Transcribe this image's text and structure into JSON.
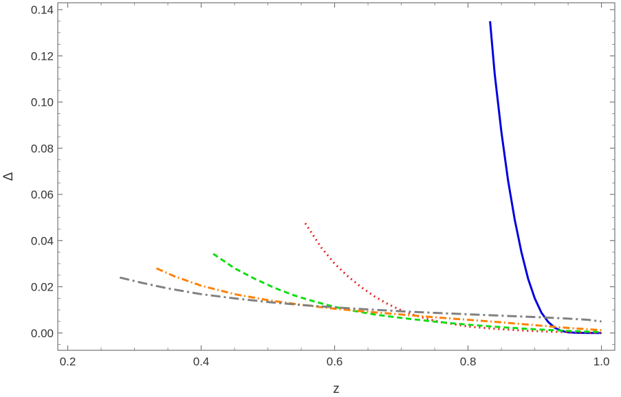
{
  "chart_data": {
    "type": "line",
    "title": "",
    "xlabel": "z",
    "ylabel": "Δ",
    "xlim": [
      0.185,
      1.02
    ],
    "ylim": [
      -0.0075,
      0.143
    ],
    "x_ticks": [
      0.2,
      0.4,
      0.6,
      0.8,
      1.0
    ],
    "x_tick_labels": [
      "0.2",
      "0.4",
      "0.6",
      "0.8",
      "1.0"
    ],
    "y_ticks": [
      0.0,
      0.02,
      0.04,
      0.06,
      0.08,
      0.1,
      0.12,
      0.14
    ],
    "y_tick_labels": [
      "0.00",
      "0.02",
      "0.04",
      "0.06",
      "0.08",
      "0.10",
      "0.12",
      "0.14"
    ],
    "grid": false,
    "legend": "none",
    "series": [
      {
        "color": "#0000e0",
        "dash": "solid",
        "points": [
          [
            0.833,
            0.135
          ],
          [
            0.84,
            0.112
          ],
          [
            0.85,
            0.087
          ],
          [
            0.86,
            0.066
          ],
          [
            0.87,
            0.049
          ],
          [
            0.88,
            0.035
          ],
          [
            0.89,
            0.0235
          ],
          [
            0.9,
            0.015
          ],
          [
            0.91,
            0.0088
          ],
          [
            0.92,
            0.0048
          ],
          [
            0.93,
            0.0023
          ],
          [
            0.94,
            0.0009
          ],
          [
            0.95,
            0.0003
          ],
          [
            0.96,
            0.0001
          ],
          [
            0.97,
            5e-05
          ],
          [
            0.98,
            0.0
          ],
          [
            0.99,
            0.0
          ],
          [
            1.0,
            0.0
          ]
        ]
      },
      {
        "color": "#e02020",
        "dash": "dotted",
        "points": [
          [
            0.556,
            0.0475
          ],
          [
            0.58,
            0.037
          ],
          [
            0.6,
            0.03
          ],
          [
            0.62,
            0.0245
          ],
          [
            0.64,
            0.0198
          ],
          [
            0.66,
            0.0158
          ],
          [
            0.68,
            0.0125
          ],
          [
            0.7,
            0.0098
          ],
          [
            0.72,
            0.0077
          ],
          [
            0.74,
            0.006
          ],
          [
            0.76,
            0.0047
          ],
          [
            0.78,
            0.0037
          ],
          [
            0.8,
            0.0028
          ],
          [
            0.84,
            0.0018
          ],
          [
            0.88,
            0.0011
          ],
          [
            0.92,
            0.0006
          ],
          [
            0.96,
            0.0003
          ],
          [
            1.0,
            0.0
          ]
        ]
      },
      {
        "color": "#11dd11",
        "dash": "dashed",
        "points": [
          [
            0.418,
            0.0343
          ],
          [
            0.45,
            0.028
          ],
          [
            0.48,
            0.0235
          ],
          [
            0.51,
            0.0195
          ],
          [
            0.54,
            0.0162
          ],
          [
            0.57,
            0.0136
          ],
          [
            0.6,
            0.0113
          ],
          [
            0.63,
            0.0095
          ],
          [
            0.66,
            0.008
          ],
          [
            0.7,
            0.0065
          ],
          [
            0.75,
            0.0049
          ],
          [
            0.8,
            0.0036
          ],
          [
            0.85,
            0.0025
          ],
          [
            0.9,
            0.0016
          ],
          [
            0.95,
            0.0009
          ],
          [
            1.0,
            0.0004
          ]
        ]
      },
      {
        "color": "#ff8000",
        "dash": "dashdot",
        "points": [
          [
            0.333,
            0.028
          ],
          [
            0.36,
            0.0245
          ],
          [
            0.4,
            0.0205
          ],
          [
            0.45,
            0.0168
          ],
          [
            0.5,
            0.0142
          ],
          [
            0.55,
            0.0122
          ],
          [
            0.6,
            0.0105
          ],
          [
            0.65,
            0.0092
          ],
          [
            0.7,
            0.008
          ],
          [
            0.75,
            0.0068
          ],
          [
            0.8,
            0.0057
          ],
          [
            0.85,
            0.0046
          ],
          [
            0.9,
            0.0034
          ],
          [
            0.95,
            0.0022
          ],
          [
            1.0,
            0.0012
          ]
        ]
      },
      {
        "color": "#808080",
        "dash": "longdashdot",
        "points": [
          [
            0.278,
            0.024
          ],
          [
            0.31,
            0.0218
          ],
          [
            0.35,
            0.0193
          ],
          [
            0.4,
            0.0168
          ],
          [
            0.45,
            0.015
          ],
          [
            0.5,
            0.0134
          ],
          [
            0.55,
            0.0121
          ],
          [
            0.6,
            0.0111
          ],
          [
            0.65,
            0.0102
          ],
          [
            0.7,
            0.0094
          ],
          [
            0.75,
            0.0087
          ],
          [
            0.8,
            0.0081
          ],
          [
            0.85,
            0.0075
          ],
          [
            0.9,
            0.0069
          ],
          [
            0.95,
            0.0062
          ],
          [
            0.98,
            0.0057
          ],
          [
            1.0,
            0.005
          ]
        ]
      }
    ]
  }
}
